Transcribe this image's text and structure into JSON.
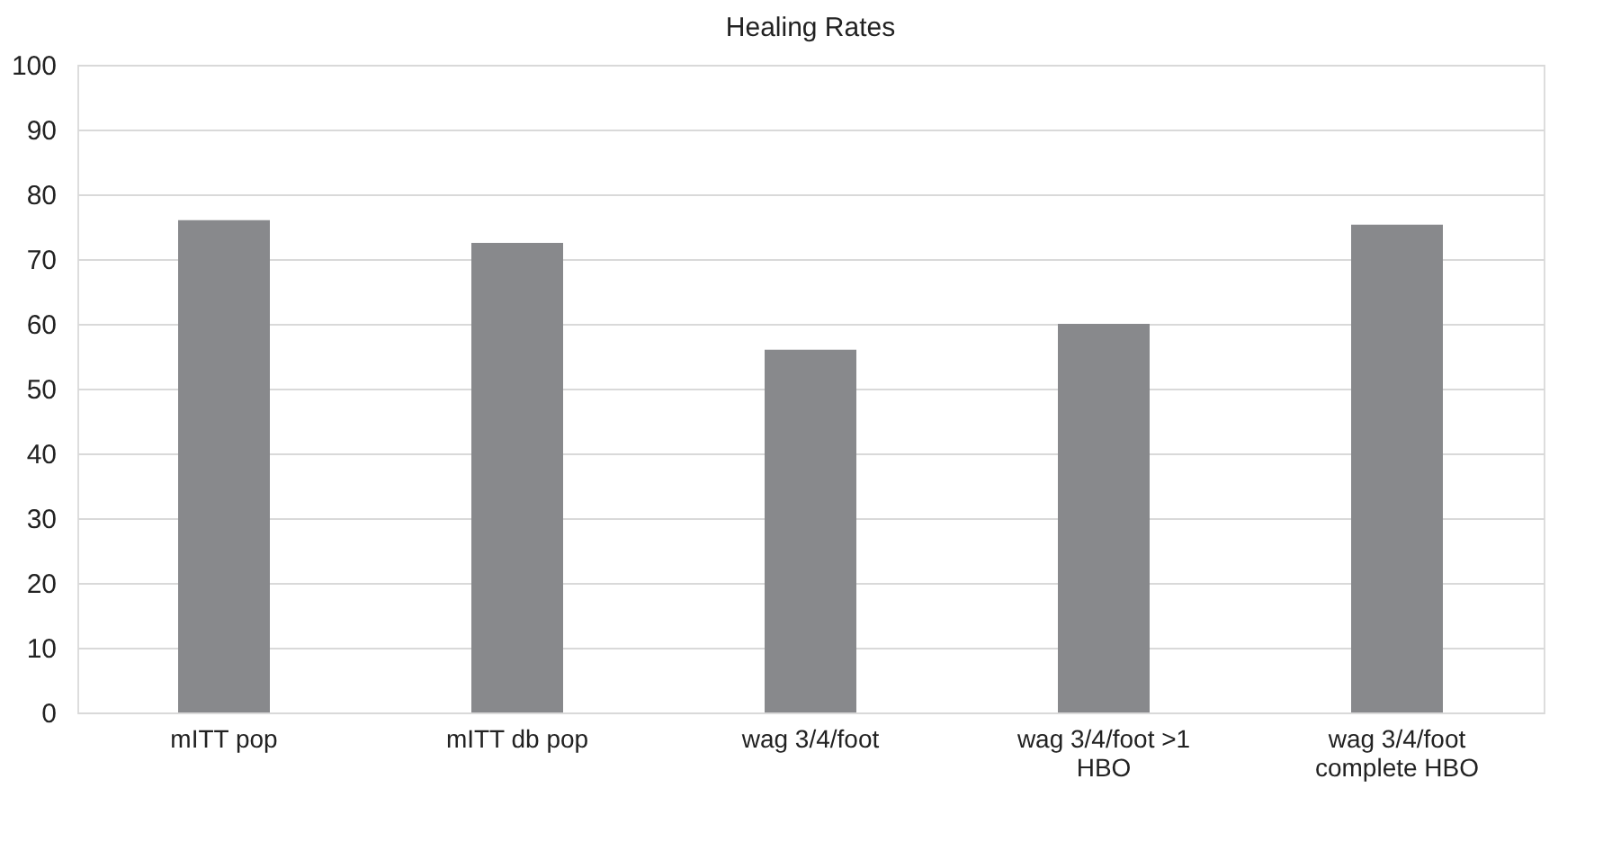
{
  "chart_data": {
    "type": "bar",
    "title": "Healing Rates",
    "categories": [
      "mITT pop",
      "mITT db pop",
      "wag 3/4/foot",
      "wag 3/4/foot >1\nHBO",
      "wag 3/4/foot\ncomplete HBO"
    ],
    "values": [
      76,
      72.5,
      56,
      60,
      75.3
    ],
    "color": "#88898c",
    "ylim": [
      0,
      100
    ],
    "yticks": [
      0,
      10,
      20,
      30,
      40,
      50,
      60,
      70,
      80,
      90,
      100
    ],
    "grid": "y"
  }
}
